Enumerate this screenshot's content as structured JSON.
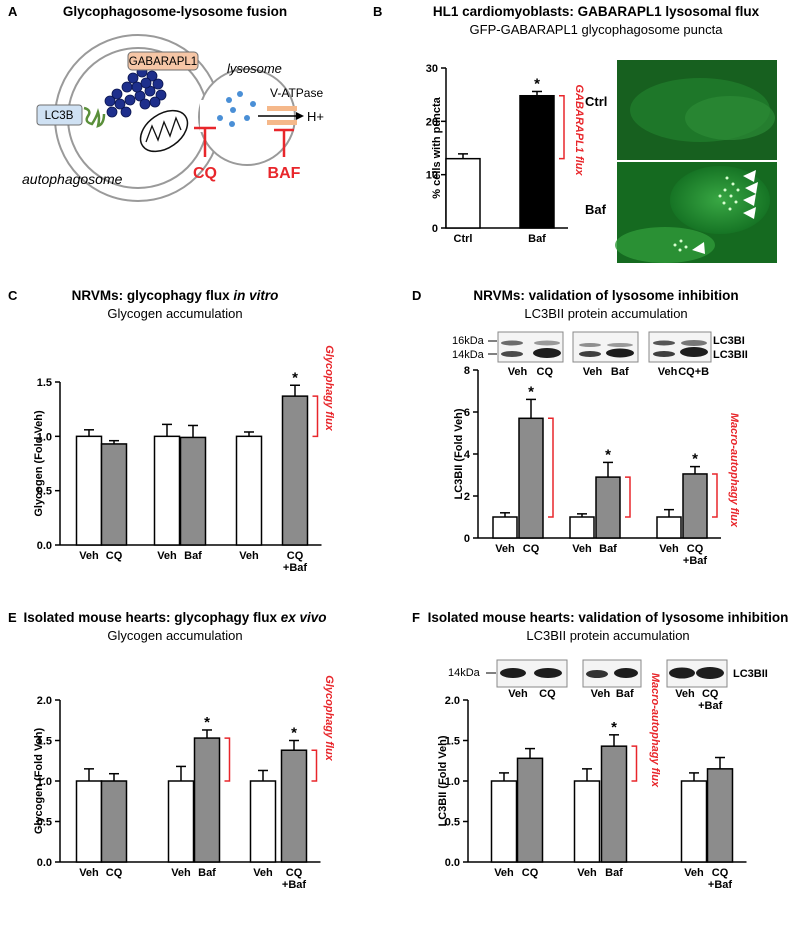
{
  "panels": {
    "A": {
      "letter": "A",
      "title": "Glycophagosome-lysosome fusion",
      "labels": {
        "gabarapl1": "GABARAPL1",
        "lc3b": "LC3B",
        "lysosome": "lysosome",
        "vatpase": "V-ATPase",
        "hplus": "H+",
        "autophagosome": "autophagosome",
        "cq": "CQ",
        "baf": "BAF"
      }
    },
    "B": {
      "letter": "B",
      "title": "HL1 cardiomyoblasts: GABARAPL1 lysosomal flux",
      "subtitle": "GFP-GABARAPL1 glycophagosome puncta",
      "micro_ctrl": "Ctrl",
      "micro_baf": "Baf"
    },
    "C": {
      "letter": "C",
      "title_main": "NRVMs: glycophagy flux ",
      "title_italic": "in vitro",
      "subtitle": "Glycogen accumulation"
    },
    "D": {
      "letter": "D",
      "title": "NRVMs: validation of lysosome inhibition",
      "subtitle": "LC3BII protein accumulation",
      "kda16": "16kDa",
      "kda14": "14kDa",
      "blot_lc3bi": "LC3BI",
      "blot_lc3bii": "LC3BII",
      "blots": [
        [
          "Veh",
          "CQ"
        ],
        [
          "Veh",
          "Baf"
        ],
        [
          "Veh",
          "CQ+B"
        ]
      ]
    },
    "E": {
      "letter": "E",
      "title_main": "Isolated mouse hearts: glycophagy flux ",
      "title_italic": "ex vivo",
      "subtitle": "Glycogen accumulation"
    },
    "F": {
      "letter": "F",
      "title": "Isolated mouse hearts: validation of lysosome inhibition",
      "subtitle": "LC3BII protein accumulation",
      "kda14": "14kDa",
      "blot_lc3bii": "LC3BII",
      "blots": [
        [
          "Veh",
          "CQ"
        ],
        [
          "Veh",
          "Baf"
        ],
        [
          "Veh",
          "CQ",
          "+Baf"
        ]
      ]
    }
  },
  "chart_data": [
    {
      "id": "B",
      "type": "bar",
      "ylabel": "% cells with puncta",
      "ylim": [
        0,
        30
      ],
      "yticks": [
        "0",
        "10",
        "20",
        "30"
      ],
      "categories": [
        [
          "Ctrl"
        ],
        [
          "Baf"
        ]
      ],
      "values": [
        13.0,
        24.8
      ],
      "errors": [
        0.9,
        0.8
      ],
      "fill": [
        "white",
        "black"
      ],
      "significant": [
        false,
        true
      ],
      "flux_label": "GABARAPL1 flux"
    },
    {
      "id": "C",
      "type": "bar",
      "ylabel": "Glycogen (Fold Veh)",
      "ylim": [
        0,
        1.5
      ],
      "yticks": [
        "0.0",
        "0.5",
        "1.0",
        "1.5"
      ],
      "categories": [
        [
          "Veh"
        ],
        [
          "CQ"
        ],
        [
          "Veh"
        ],
        [
          "Baf"
        ],
        [
          "Veh"
        ],
        [
          "CQ",
          "+Baf"
        ]
      ],
      "values": [
        1.0,
        0.93,
        1.0,
        0.99,
        1.0,
        1.37
      ],
      "errors": [
        0.06,
        0.03,
        0.11,
        0.11,
        0.04,
        0.1
      ],
      "fill": [
        "white",
        "gray",
        "white",
        "gray",
        "white",
        "gray"
      ],
      "significant": [
        false,
        false,
        false,
        false,
        false,
        true
      ],
      "flux_label": "Glycophagy flux"
    },
    {
      "id": "D",
      "type": "bar",
      "ylabel": "LC3BII (Fold Veh)",
      "ylim": [
        0,
        8
      ],
      "yticks": [
        "0",
        "2",
        "4",
        "6",
        "8"
      ],
      "categories": [
        [
          "Veh"
        ],
        [
          "CQ"
        ],
        [
          "Veh"
        ],
        [
          "Baf"
        ],
        [
          "Veh"
        ],
        [
          "CQ",
          "+Baf"
        ]
      ],
      "values": [
        1.0,
        5.7,
        1.0,
        2.9,
        1.0,
        3.05
      ],
      "errors": [
        0.2,
        0.9,
        0.15,
        0.7,
        0.35,
        0.35
      ],
      "fill": [
        "white",
        "gray",
        "white",
        "gray",
        "white",
        "gray"
      ],
      "significant": [
        false,
        true,
        false,
        true,
        false,
        true
      ],
      "flux_label": "Macro-autophagy flux"
    },
    {
      "id": "E",
      "type": "bar",
      "ylabel": "Glycogen (Fold Veh)",
      "ylim": [
        0,
        2.0
      ],
      "yticks": [
        "0.0",
        "0.5",
        "1.0",
        "1.5",
        "2.0"
      ],
      "categories": [
        [
          "Veh"
        ],
        [
          "CQ"
        ],
        [
          "Veh"
        ],
        [
          "Baf"
        ],
        [
          "Veh"
        ],
        [
          "CQ",
          "+Baf"
        ]
      ],
      "values": [
        1.0,
        1.0,
        1.0,
        1.53,
        1.0,
        1.38
      ],
      "errors": [
        0.15,
        0.09,
        0.18,
        0.1,
        0.13,
        0.12
      ],
      "fill": [
        "white",
        "gray",
        "white",
        "gray",
        "white",
        "gray"
      ],
      "significant": [
        false,
        false,
        false,
        true,
        false,
        true
      ],
      "flux_label": "Glycophagy flux"
    },
    {
      "id": "F",
      "type": "bar",
      "ylabel": "LC3BII (Fold Veh)",
      "ylim": [
        0,
        2.0
      ],
      "yticks": [
        "0.0",
        "0.5",
        "1.0",
        "1.5",
        "2.0"
      ],
      "categories": [
        [
          "Veh"
        ],
        [
          "CQ"
        ],
        [
          "Veh"
        ],
        [
          "Baf"
        ],
        [
          "Veh"
        ],
        [
          "CQ",
          "+Baf"
        ]
      ],
      "values": [
        1.0,
        1.28,
        1.0,
        1.43,
        1.0,
        1.15
      ],
      "errors": [
        0.1,
        0.12,
        0.15,
        0.14,
        0.1,
        0.14
      ],
      "fill": [
        "white",
        "gray",
        "white",
        "gray",
        "white",
        "gray"
      ],
      "significant": [
        false,
        false,
        false,
        true,
        false,
        false
      ],
      "flux_label": "Macro-autophagy flux"
    }
  ],
  "colors": {
    "red": "#e8262b",
    "gray_bar": "#8c8c8c",
    "gabarapl1_fill": "#f6c6a6",
    "lc3b_fill": "#cfe1f3",
    "dots": "#4a8fd6",
    "beads": "#1e2f8c",
    "green": "#5a8f3a",
    "micro_bg": "#1c8a2c"
  }
}
